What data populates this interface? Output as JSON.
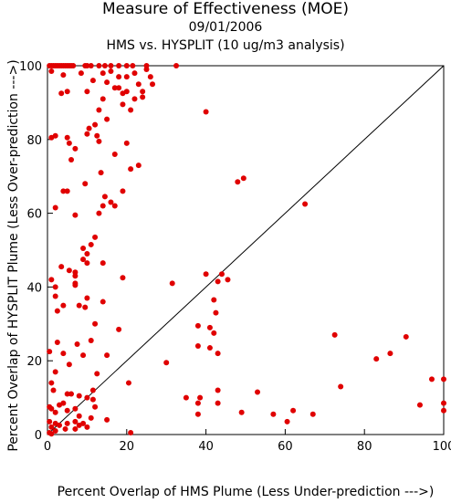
{
  "chart_data": {
    "type": "scatter",
    "title": "Measure of Effectiveness (MOE)",
    "subtitle": "09/01/2006",
    "subtitle2": "HMS vs. HYSPLIT  (10 ug/m3 analysis)",
    "xlabel": "Percent Overlap of HMS Plume (Less Under-prediction --->)",
    "ylabel": "Percent Overlap of HYSPLIT Plume (Less Over-prediction --->)",
    "xlim": [
      0,
      100
    ],
    "ylim": [
      0,
      100
    ],
    "xticks": [
      "0",
      "20",
      "40",
      "60",
      "80",
      "100"
    ],
    "yticks": [
      "0",
      "20",
      "40",
      "60",
      "80",
      "100"
    ],
    "diagonal": true,
    "point_color": "#e00000",
    "points": [
      [
        0.5,
        100
      ],
      [
        1,
        100
      ],
      [
        1.5,
        100
      ],
      [
        2,
        100
      ],
      [
        2.5,
        100
      ],
      [
        3,
        100
      ],
      [
        3.5,
        100
      ],
      [
        4,
        100
      ],
      [
        4.5,
        100
      ],
      [
        5,
        100
      ],
      [
        5.5,
        100
      ],
      [
        6,
        100
      ],
      [
        6.5,
        100
      ],
      [
        9.5,
        100
      ],
      [
        10,
        100
      ],
      [
        11,
        100
      ],
      [
        13,
        100
      ],
      [
        14.5,
        100
      ],
      [
        16,
        100
      ],
      [
        18,
        100
      ],
      [
        20,
        100
      ],
      [
        21.5,
        100
      ],
      [
        25,
        100
      ],
      [
        32.5,
        100
      ],
      [
        1,
        98.5
      ],
      [
        4,
        97.5
      ],
      [
        8.5,
        98
      ],
      [
        14,
        98
      ],
      [
        16,
        98.5
      ],
      [
        22,
        98
      ],
      [
        25,
        99
      ],
      [
        18,
        97
      ],
      [
        20,
        97
      ],
      [
        26,
        97
      ],
      [
        11.5,
        96
      ],
      [
        15,
        95.5
      ],
      [
        17,
        94
      ],
      [
        18,
        94
      ],
      [
        19,
        92.5
      ],
      [
        23,
        95
      ],
      [
        24,
        93
      ],
      [
        26.5,
        95
      ],
      [
        20,
        93
      ],
      [
        22,
        91
      ],
      [
        5,
        93
      ],
      [
        3.5,
        92.5
      ],
      [
        10,
        93
      ],
      [
        14,
        91
      ],
      [
        19,
        89.5
      ],
      [
        24,
        91.5
      ],
      [
        21,
        88
      ],
      [
        13,
        88
      ],
      [
        15,
        85.5
      ],
      [
        40,
        87.5
      ],
      [
        12,
        84
      ],
      [
        10.5,
        83
      ],
      [
        10,
        81.5
      ],
      [
        12.5,
        81
      ],
      [
        13,
        79.5
      ],
      [
        2,
        81
      ],
      [
        1,
        80.5
      ],
      [
        5,
        80.5
      ],
      [
        5.5,
        79
      ],
      [
        20,
        79
      ],
      [
        7,
        77.5
      ],
      [
        17,
        76
      ],
      [
        6,
        74.5
      ],
      [
        23,
        73
      ],
      [
        21,
        72
      ],
      [
        13.5,
        71
      ],
      [
        9.5,
        68
      ],
      [
        19,
        66
      ],
      [
        5,
        66
      ],
      [
        4,
        66
      ],
      [
        48,
        68.5
      ],
      [
        49.5,
        69.5
      ],
      [
        65,
        62.5
      ],
      [
        14.5,
        64.5
      ],
      [
        16,
        63
      ],
      [
        17,
        62
      ],
      [
        14,
        62
      ],
      [
        2,
        61.5
      ],
      [
        13,
        60
      ],
      [
        7,
        59.5
      ],
      [
        12,
        53.5
      ],
      [
        11,
        51.5
      ],
      [
        9,
        50.5
      ],
      [
        10,
        49
      ],
      [
        9,
        47.5
      ],
      [
        10,
        46.5
      ],
      [
        14,
        46.5
      ],
      [
        3.5,
        45.5
      ],
      [
        5.5,
        44.5
      ],
      [
        7,
        44
      ],
      [
        7,
        43
      ],
      [
        1,
        42
      ],
      [
        19,
        42.5
      ],
      [
        7,
        41
      ],
      [
        7,
        40.5
      ],
      [
        2,
        40
      ],
      [
        31.5,
        41
      ],
      [
        40,
        43.5
      ],
      [
        43,
        41.5
      ],
      [
        44,
        43.5
      ],
      [
        45.5,
        42
      ],
      [
        2,
        37.5
      ],
      [
        4,
        35
      ],
      [
        9.5,
        34.5
      ],
      [
        10,
        37
      ],
      [
        14,
        36
      ],
      [
        8,
        35
      ],
      [
        2.5,
        33.5
      ],
      [
        42,
        36.5
      ],
      [
        42.5,
        33
      ],
      [
        38,
        29.5
      ],
      [
        41,
        29
      ],
      [
        12,
        30
      ],
      [
        18,
        28.5
      ],
      [
        42,
        27.5
      ],
      [
        72.5,
        27
      ],
      [
        90.5,
        26.5
      ],
      [
        2.5,
        25
      ],
      [
        7.5,
        24.5
      ],
      [
        11,
        25.5
      ],
      [
        38,
        24
      ],
      [
        41,
        23.5
      ],
      [
        43,
        22
      ],
      [
        83,
        20.5
      ],
      [
        86.5,
        22
      ],
      [
        0.5,
        22.5
      ],
      [
        4,
        22
      ],
      [
        9,
        21.5
      ],
      [
        15,
        21.5
      ],
      [
        30,
        19.5
      ],
      [
        5.5,
        19
      ],
      [
        2,
        17
      ],
      [
        12.5,
        16.5
      ],
      [
        1,
        14
      ],
      [
        20.5,
        14
      ],
      [
        74,
        13
      ],
      [
        97,
        15
      ],
      [
        100,
        15
      ],
      [
        11.5,
        12
      ],
      [
        1.5,
        12
      ],
      [
        5,
        11
      ],
      [
        6,
        11
      ],
      [
        8,
        10.5
      ],
      [
        10,
        10
      ],
      [
        11.5,
        9.5
      ],
      [
        35,
        10
      ],
      [
        38.5,
        10
      ],
      [
        38,
        8.5
      ],
      [
        43,
        8.5
      ],
      [
        43,
        12
      ],
      [
        53,
        11.5
      ],
      [
        0.5,
        7.5
      ],
      [
        1,
        7
      ],
      [
        2,
        6
      ],
      [
        3,
        8
      ],
      [
        4,
        8.5
      ],
      [
        5,
        6.5
      ],
      [
        7,
        7
      ],
      [
        8,
        5
      ],
      [
        11,
        4.5
      ],
      [
        12,
        7.5
      ],
      [
        15,
        4
      ],
      [
        38,
        5.5
      ],
      [
        49,
        6
      ],
      [
        57,
        5.5
      ],
      [
        62,
        6.5
      ],
      [
        67,
        5.5
      ],
      [
        94,
        8
      ],
      [
        100,
        8.5
      ],
      [
        100,
        6.5
      ],
      [
        0.5,
        3.5
      ],
      [
        1,
        2
      ],
      [
        2,
        3
      ],
      [
        3,
        2.5
      ],
      [
        5,
        3
      ],
      [
        7,
        1.5
      ],
      [
        7,
        3.5
      ],
      [
        8,
        2.5
      ],
      [
        9,
        3
      ],
      [
        10,
        2
      ],
      [
        2,
        1
      ],
      [
        4.5,
        1.5
      ],
      [
        21,
        0.5
      ],
      [
        60.5,
        3.5
      ],
      [
        0.5,
        0.5
      ],
      [
        1,
        0.2
      ]
    ]
  }
}
